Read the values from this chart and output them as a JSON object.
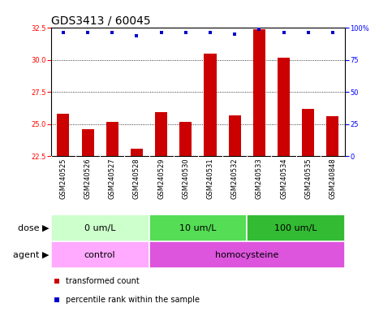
{
  "title": "GDS3413 / 60045",
  "samples": [
    "GSM240525",
    "GSM240526",
    "GSM240527",
    "GSM240528",
    "GSM240529",
    "GSM240530",
    "GSM240531",
    "GSM240532",
    "GSM240533",
    "GSM240534",
    "GSM240535",
    "GSM240848"
  ],
  "transformed_counts": [
    25.8,
    24.6,
    25.2,
    23.1,
    25.9,
    25.2,
    30.5,
    25.7,
    32.4,
    30.2,
    26.2,
    25.6
  ],
  "percentile_ranks": [
    96,
    96,
    96,
    94,
    96,
    96,
    96,
    95,
    99,
    96,
    96,
    96
  ],
  "ylim_left": [
    22.5,
    32.5
  ],
  "ylim_right": [
    0,
    100
  ],
  "yticks_left": [
    22.5,
    25.0,
    27.5,
    30.0,
    32.5
  ],
  "yticks_right": [
    0,
    25,
    50,
    75,
    100
  ],
  "bar_color": "#cc0000",
  "dot_color": "#0000cc",
  "dose_groups": [
    {
      "label": "0 um/L",
      "start": 0,
      "end": 4,
      "color": "#ccffcc"
    },
    {
      "label": "10 um/L",
      "start": 4,
      "end": 8,
      "color": "#55dd55"
    },
    {
      "label": "100 um/L",
      "start": 8,
      "end": 12,
      "color": "#33bb33"
    }
  ],
  "agent_groups": [
    {
      "label": "control",
      "start": 0,
      "end": 4,
      "color": "#ffaaff"
    },
    {
      "label": "homocysteine",
      "start": 4,
      "end": 12,
      "color": "#dd55dd"
    }
  ],
  "legend_red_label": "transformed count",
  "legend_blue_label": "percentile rank within the sample",
  "dose_label": "dose",
  "agent_label": "agent",
  "bar_bottom": 22.5,
  "title_fontsize": 10,
  "tick_fontsize": 6,
  "annot_fontsize": 8,
  "legend_fontsize": 7,
  "xtick_bg": "#cccccc",
  "xtick_divider": "#ffffff",
  "bg_color": "#ffffff"
}
